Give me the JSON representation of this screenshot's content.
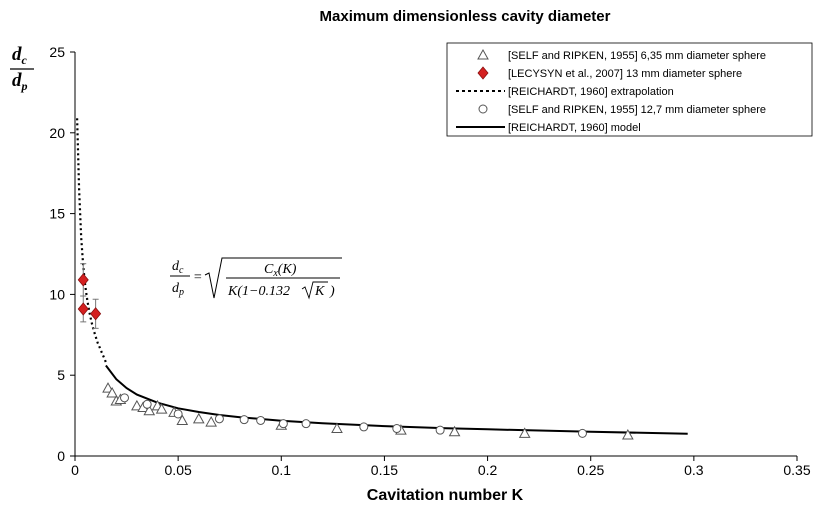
{
  "chart_data": {
    "type": "scatter",
    "title": "Maximum dimensionless cavity diameter",
    "xlabel": "Cavitation number K",
    "ylabel": {
      "numerator": "d",
      "numerator_sub": "c",
      "denominator": "d",
      "denominator_sub": "p"
    },
    "xlim": [
      0,
      0.35
    ],
    "ylim": [
      0,
      25
    ],
    "x_ticks": [
      "0",
      "0.05",
      "0.1",
      "0.15",
      "0.2",
      "0.25",
      "0.3",
      "0.35"
    ],
    "y_ticks": [
      "0",
      "5",
      "10",
      "15",
      "20",
      "25"
    ],
    "legend_position": "top-right",
    "equation": {
      "lhs_num": "d",
      "lhs_num_sub": "c",
      "lhs_den": "d",
      "lhs_den_sub": "p",
      "rhs_num": "C",
      "rhs_num_sub": "x",
      "rhs_num_arg": "(K)",
      "rhs_den": "K(1−0.132",
      "rhs_den_root": "K",
      "rhs_den_close": ")"
    },
    "series": [
      {
        "name": "[SELF and RIPKEN, 1955] 6,35 mm diameter sphere",
        "marker": "triangle",
        "points": [
          [
            0.016,
            4.2
          ],
          [
            0.018,
            3.9
          ],
          [
            0.02,
            3.4
          ],
          [
            0.022,
            3.5
          ],
          [
            0.03,
            3.1
          ],
          [
            0.033,
            3.0
          ],
          [
            0.036,
            2.8
          ],
          [
            0.04,
            3.1
          ],
          [
            0.042,
            2.9
          ],
          [
            0.048,
            2.7
          ],
          [
            0.052,
            2.2
          ],
          [
            0.06,
            2.3
          ],
          [
            0.066,
            2.1
          ],
          [
            0.1,
            1.9
          ],
          [
            0.127,
            1.7
          ],
          [
            0.158,
            1.6
          ],
          [
            0.184,
            1.5
          ],
          [
            0.218,
            1.4
          ],
          [
            0.268,
            1.3
          ]
        ]
      },
      {
        "name": "[LECYSYN et al., 2007] 13 mm diameter sphere",
        "marker": "diamond",
        "color": "#d42020",
        "points": [
          [
            0.004,
            10.9
          ],
          [
            0.004,
            9.1
          ],
          [
            0.01,
            8.8
          ]
        ],
        "error": [
          1.0,
          0.8,
          0.9
        ]
      },
      {
        "name": "[REICHARDT, 1960] extrapolation",
        "style": "dotted",
        "points": [
          [
            0.001,
            20.9
          ],
          [
            0.002,
            16.5
          ],
          [
            0.003,
            13.5
          ],
          [
            0.004,
            11.7
          ],
          [
            0.005,
            10.5
          ],
          [
            0.006,
            9.6
          ],
          [
            0.007,
            8.9
          ],
          [
            0.008,
            8.3
          ],
          [
            0.009,
            7.8
          ],
          [
            0.01,
            7.4
          ],
          [
            0.011,
            7.0
          ],
          [
            0.012,
            6.7
          ],
          [
            0.013,
            6.4
          ],
          [
            0.014,
            6.1
          ],
          [
            0.015,
            5.8
          ]
        ]
      },
      {
        "name": "[SELF and RIPKEN, 1955] 12,7 mm diameter sphere",
        "marker": "circle",
        "points": [
          [
            0.024,
            3.6
          ],
          [
            0.035,
            3.2
          ],
          [
            0.05,
            2.6
          ],
          [
            0.07,
            2.3
          ],
          [
            0.082,
            2.25
          ],
          [
            0.09,
            2.2
          ],
          [
            0.101,
            2.0
          ],
          [
            0.112,
            2.0
          ],
          [
            0.14,
            1.8
          ],
          [
            0.156,
            1.7
          ],
          [
            0.177,
            1.6
          ],
          [
            0.246,
            1.4
          ]
        ]
      },
      {
        "name": "[REICHARDT, 1960] model",
        "style": "solid",
        "points": [
          [
            0.015,
            5.6
          ],
          [
            0.02,
            4.75
          ],
          [
            0.025,
            4.2
          ],
          [
            0.03,
            3.8
          ],
          [
            0.04,
            3.3
          ],
          [
            0.05,
            2.95
          ],
          [
            0.06,
            2.72
          ],
          [
            0.07,
            2.54
          ],
          [
            0.08,
            2.4
          ],
          [
            0.1,
            2.18
          ],
          [
            0.12,
            2.03
          ],
          [
            0.15,
            1.85
          ],
          [
            0.18,
            1.72
          ],
          [
            0.2,
            1.65
          ],
          [
            0.25,
            1.5
          ],
          [
            0.297,
            1.38
          ]
        ]
      }
    ]
  }
}
